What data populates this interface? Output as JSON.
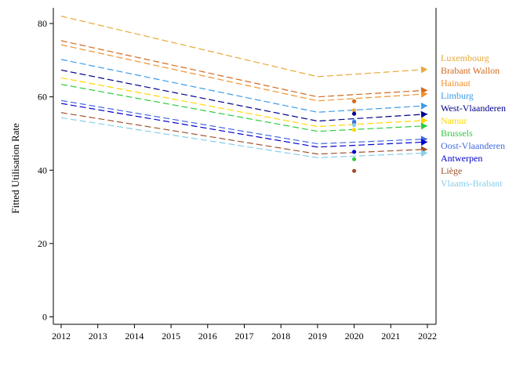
{
  "chart_data": {
    "type": "line",
    "title": "",
    "xlabel": "",
    "ylabel": "Fitted Utilisation Rate",
    "xlim": [
      2012,
      2022
    ],
    "ylim": [
      0,
      85
    ],
    "x_ticks": [
      "2012",
      "2013",
      "2014",
      "2015",
      "2016",
      "2017",
      "2018",
      "2019",
      "2020",
      "2021",
      "2022"
    ],
    "y_ticks": [
      "0",
      "20",
      "40",
      "60",
      "80"
    ],
    "grid": false,
    "legend_position": "right",
    "line_style": "dashed",
    "series": [
      {
        "name": "Luxembourg",
        "color": "#e8a838",
        "x": [
          2012,
          2019,
          2022
        ],
        "y": [
          82.0,
          65.5,
          67.5
        ],
        "observed_2020": 56.3
      },
      {
        "name": "Brabant Wallon",
        "color": "#d2691e",
        "x": [
          2012,
          2019,
          2022
        ],
        "y": [
          75.3,
          60.0,
          61.8
        ],
        "observed_2020": 58.8
      },
      {
        "name": "Hainaut",
        "color": "#f0922e",
        "x": [
          2012,
          2019,
          2022
        ],
        "y": [
          74.2,
          58.9,
          60.8
        ],
        "observed_2020": 52.8
      },
      {
        "name": "Limburg",
        "color": "#3d9be9",
        "x": [
          2012,
          2019,
          2022
        ],
        "y": [
          70.2,
          55.8,
          57.6
        ],
        "observed_2020": 53.3
      },
      {
        "name": "West-Vlaanderen",
        "color": "#00008b",
        "x": [
          2012,
          2019,
          2022
        ],
        "y": [
          67.3,
          53.4,
          55.3
        ],
        "observed_2020": 55.4
      },
      {
        "name": "Namur",
        "color": "#ffd700",
        "x": [
          2012,
          2019,
          2022
        ],
        "y": [
          65.2,
          51.9,
          53.6
        ],
        "observed_2020": 51.0
      },
      {
        "name": "Brussels",
        "color": "#2ecc40",
        "x": [
          2012,
          2019,
          2022
        ],
        "y": [
          63.4,
          50.6,
          52.1
        ],
        "observed_2020": 43.0
      },
      {
        "name": "Oost-Vlaanderen",
        "color": "#4169e1",
        "x": [
          2012,
          2019,
          2022
        ],
        "y": [
          59.0,
          47.2,
          48.5
        ],
        "observed_2020": 53.0
      },
      {
        "name": "Antwerpen",
        "color": "#0000cd",
        "x": [
          2012,
          2019,
          2022
        ],
        "y": [
          58.2,
          46.3,
          47.7
        ],
        "observed_2020": 45.0
      },
      {
        "name": "Liège",
        "color": "#a0522d",
        "x": [
          2012,
          2019,
          2022
        ],
        "y": [
          55.7,
          44.4,
          45.7
        ],
        "observed_2020": 39.8
      },
      {
        "name": "Vlaams-Brabant",
        "color": "#87ceeb",
        "x": [
          2012,
          2019,
          2022
        ],
        "y": [
          54.3,
          43.4,
          44.7
        ],
        "observed_2020": 52.3
      }
    ]
  }
}
